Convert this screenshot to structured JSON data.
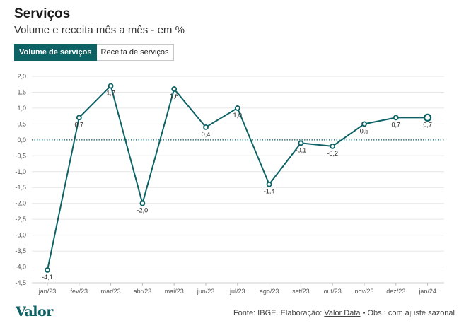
{
  "header": {
    "title": "Serviços",
    "subtitle": "Volume e receita mês a mês - em %"
  },
  "tabs": [
    {
      "label": "Volume de serviços",
      "active": true
    },
    {
      "label": "Receita de serviços",
      "active": false
    }
  ],
  "footer": {
    "logo": "Valor",
    "source_prefix": "Fonte: IBGE. Elaboração:",
    "source_link": "Valor Data",
    "source_suffix": "• Obs.: com ajuste sazonal"
  },
  "colors": {
    "accent": "#0d6266",
    "grid": "#e6e6e6"
  },
  "chart_data": {
    "type": "line",
    "title": "Serviços",
    "subtitle": "Volume e receita mês a mês - em %",
    "categories": [
      "jan/23",
      "fev/23",
      "mar/23",
      "abr/23",
      "mai/23",
      "jun/23",
      "jul/23",
      "ago/23",
      "set/23",
      "out/23",
      "nov/23",
      "dez/23",
      "jan/24"
    ],
    "series": [
      {
        "name": "Volume de serviços",
        "values": [
          -4.1,
          0.7,
          1.7,
          -2.0,
          1.6,
          0.4,
          1.0,
          -1.4,
          -0.1,
          -0.2,
          0.5,
          0.7,
          0.7
        ],
        "labels": [
          "-4,1",
          "0,7",
          "1,7",
          "-2,0",
          "1,6",
          "0,4",
          "1,0",
          "-1,4",
          "-0,1",
          "-0,2",
          "0,5",
          "0,7",
          "0,7"
        ]
      }
    ],
    "ylim": [
      -4.5,
      2.0
    ],
    "yticks": [
      2.0,
      1.5,
      1.0,
      0.5,
      0.0,
      -0.5,
      -1.0,
      -1.5,
      -2.0,
      -2.5,
      -3.0,
      -3.5,
      -4.0,
      -4.5
    ],
    "ytick_labels": [
      "2,0",
      "1,5",
      "1,0",
      "0,5",
      "0,0",
      "-0,5",
      "-1,0",
      "-1,5",
      "-2,0",
      "-2,5",
      "-3,0",
      "-3,5",
      "-4,0",
      "-4,5"
    ],
    "zero_line": "dotted",
    "grid": true
  }
}
